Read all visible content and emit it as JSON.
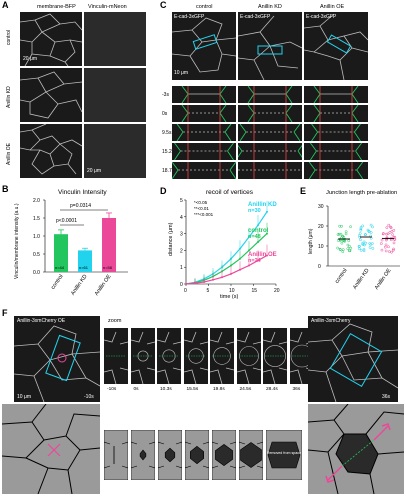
{
  "panelA": {
    "letter": "A",
    "col_headers": [
      "membrane-BFP",
      "Vinculin-mNeon"
    ],
    "rows": [
      "control",
      "Anillin KD",
      "Anillin OE"
    ],
    "scale": "20 μm"
  },
  "panelB": {
    "letter": "B",
    "title": "Vinculin Intensity",
    "ylabel": "Vinculin/membrane intensity (a.u.)",
    "pvals": [
      "p<0.0001",
      "p=0.0314"
    ],
    "chart_data": {
      "type": "bar",
      "categories": [
        "control",
        "Anillin KD",
        "Anillin OE"
      ],
      "values": [
        1.05,
        0.6,
        1.5
      ],
      "errors": [
        0.12,
        0.06,
        0.14
      ],
      "n_labels": [
        "n=44",
        "n=61",
        "n=58"
      ],
      "colors": [
        "#22c55e",
        "#22d3ee",
        "#ec4899"
      ],
      "ylim": [
        0,
        2.0
      ],
      "yticks": [
        "0.0",
        "0.5",
        "1.0",
        "1.5",
        "2.0"
      ]
    }
  },
  "panelC": {
    "letter": "C",
    "cols": [
      "control",
      "Anillin KD",
      "Anillin OE"
    ],
    "tags": [
      "E-cad-3xGFP",
      "E-cad-3xGFP",
      "E-cad-3xGFP"
    ],
    "scale": "10 μm",
    "times": [
      "-3s",
      "0s",
      "9.5s",
      "15.2s",
      "18.7s"
    ]
  },
  "panelD": {
    "letter": "D",
    "title": "recoil of vertices",
    "xlabel": "time (s)",
    "ylabel": "distance (μm)",
    "sig": [
      "*<0.05",
      "**<0.01",
      "***<0.001"
    ],
    "chart_data": {
      "type": "line",
      "x": [
        0,
        2,
        4,
        6,
        8,
        10,
        12,
        14,
        16,
        18
      ],
      "series": [
        {
          "name": "Anillin KD",
          "n": "n=30",
          "color": "#22d3ee",
          "values": [
            0,
            0.1,
            0.3,
            0.6,
            1.0,
            1.5,
            2.1,
            2.8,
            3.5,
            4.3
          ]
        },
        {
          "name": "control",
          "n": "n=48",
          "color": "#22c55e",
          "values": [
            0,
            0.08,
            0.22,
            0.45,
            0.75,
            1.1,
            1.5,
            2.0,
            2.5,
            3.0
          ]
        },
        {
          "name": "Anillin OE",
          "n": "n=24",
          "color": "#ec4899",
          "values": [
            0,
            0.05,
            0.12,
            0.25,
            0.4,
            0.6,
            0.85,
            1.1,
            1.4,
            1.7
          ]
        }
      ],
      "xlim": [
        0,
        20
      ],
      "ylim": [
        0,
        5
      ],
      "xticks": [
        "0",
        "5",
        "10",
        "15",
        "20"
      ],
      "yticks": [
        "0",
        "1",
        "2",
        "3",
        "4",
        "5"
      ]
    }
  },
  "panelE": {
    "letter": "E",
    "title": "Junction length pre-ablation",
    "ylabel": "length (μm)",
    "chart_data": {
      "type": "scatter",
      "categories": [
        "control",
        "Anillin KD",
        "Anillin OE"
      ],
      "means": [
        13.5,
        14.5,
        13.8
      ],
      "colors": [
        "#22c55e",
        "#22d3ee",
        "#ec4899"
      ],
      "ylim": [
        0,
        30
      ],
      "yticks": [
        "0",
        "10",
        "20",
        "30"
      ]
    }
  },
  "panelF": {
    "letter": "F",
    "left_tag": "Anillin-3xmCherry OE",
    "right_tag": "Anillin-3xmCherry",
    "zoom": "zoom",
    "left_time": "-10s",
    "right_time": "36s",
    "scale": "10 μm",
    "strip_times": [
      "-10s",
      "0s",
      "10.3s",
      "15.5s",
      "19.8s",
      "24.5s",
      "28.4s",
      "36s"
    ],
    "note": "Removed from space"
  }
}
